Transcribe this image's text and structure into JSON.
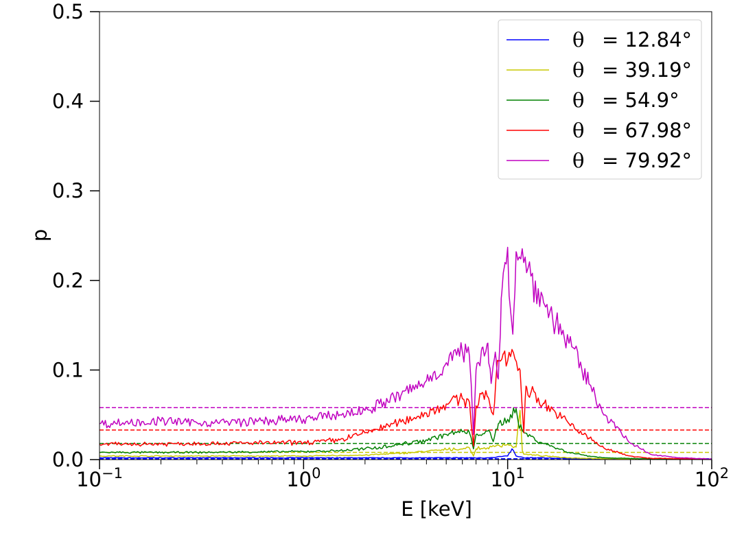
{
  "chart_data": {
    "type": "line",
    "xlabel": "E [keV]",
    "ylabel": "p",
    "xscale": "log",
    "xlim": [
      0.1,
      100
    ],
    "ylim": [
      0.0,
      0.5
    ],
    "x_tick_labels": [
      {
        "base": "10",
        "exp": "−1",
        "value": 0.1
      },
      {
        "base": "10",
        "exp": "0",
        "value": 1
      },
      {
        "base": "10",
        "exp": "1",
        "value": 10
      },
      {
        "base": "10",
        "exp": "2",
        "value": 100
      }
    ],
    "y_tick_labels": [
      {
        "label": "0.0",
        "value": 0.0
      },
      {
        "label": "0.1",
        "value": 0.1
      },
      {
        "label": "0.2",
        "value": 0.2
      },
      {
        "label": "0.3",
        "value": 0.3
      },
      {
        "label": "0.4",
        "value": 0.4
      },
      {
        "label": "0.5",
        "value": 0.5
      }
    ],
    "grid": false,
    "legend_position": "top-right",
    "series": [
      {
        "name": "= 12.84°",
        "symbol": "θ",
        "color": "#0000ff",
        "constant": 0.001,
        "points": [
          [
            0.1,
            0.002
          ],
          [
            0.3,
            0.002
          ],
          [
            1,
            0.002
          ],
          [
            2,
            0.002
          ],
          [
            4,
            0.002
          ],
          [
            6,
            0.002
          ],
          [
            8,
            0.002
          ],
          [
            10,
            0.004
          ],
          [
            10.5,
            0.012
          ],
          [
            11,
            0.004
          ],
          [
            12,
            0.002
          ],
          [
            15,
            0.002
          ],
          [
            20,
            0.001
          ],
          [
            30,
            0.0005
          ],
          [
            50,
            0.0002
          ],
          [
            100,
            0.0001
          ]
        ]
      },
      {
        "name": "= 39.19°",
        "symbol": "θ",
        "color": "#c8c800",
        "constant": 0.008,
        "points": [
          [
            0.1,
            0.004
          ],
          [
            0.3,
            0.004
          ],
          [
            1,
            0.004
          ],
          [
            2,
            0.005
          ],
          [
            3,
            0.007
          ],
          [
            5,
            0.011
          ],
          [
            6.5,
            0.013
          ],
          [
            6.8,
            0.004
          ],
          [
            7,
            0.012
          ],
          [
            8,
            0.013
          ],
          [
            9,
            0.016
          ],
          [
            10,
            0.017
          ],
          [
            11,
            0.014
          ],
          [
            11.5,
            0.055
          ],
          [
            11.8,
            0.01
          ],
          [
            12,
            0.006
          ],
          [
            15,
            0.004
          ],
          [
            20,
            0.002
          ],
          [
            30,
            0.001
          ],
          [
            50,
            0.0005
          ],
          [
            100,
            0.0002
          ]
        ]
      },
      {
        "name": "= 54.9°",
        "symbol": "θ",
        "color": "#008000",
        "constant": 0.018,
        "points": [
          [
            0.1,
            0.008
          ],
          [
            0.3,
            0.008
          ],
          [
            1,
            0.009
          ],
          [
            1.5,
            0.01
          ],
          [
            2,
            0.012
          ],
          [
            3,
            0.017
          ],
          [
            4,
            0.022
          ],
          [
            5,
            0.028
          ],
          [
            6,
            0.031
          ],
          [
            6.5,
            0.03
          ],
          [
            6.8,
            0.012
          ],
          [
            7,
            0.028
          ],
          [
            8,
            0.032
          ],
          [
            8.5,
            0.02
          ],
          [
            9,
            0.04
          ],
          [
            10,
            0.045
          ],
          [
            11,
            0.057
          ],
          [
            11.3,
            0.04
          ],
          [
            12,
            0.03
          ],
          [
            15,
            0.018
          ],
          [
            20,
            0.008
          ],
          [
            25,
            0.004
          ],
          [
            30,
            0.002
          ],
          [
            50,
            0.0008
          ],
          [
            100,
            0.0002
          ]
        ]
      },
      {
        "name": "= 67.98°",
        "symbol": "θ",
        "color": "#ff0000",
        "constant": 0.033,
        "points": [
          [
            0.1,
            0.017
          ],
          [
            0.3,
            0.018
          ],
          [
            1,
            0.019
          ],
          [
            1.5,
            0.022
          ],
          [
            2,
            0.03
          ],
          [
            3,
            0.042
          ],
          [
            4,
            0.052
          ],
          [
            5,
            0.062
          ],
          [
            6,
            0.068
          ],
          [
            6.5,
            0.064
          ],
          [
            6.8,
            0.015
          ],
          [
            7,
            0.06
          ],
          [
            7.5,
            0.075
          ],
          [
            8,
            0.07
          ],
          [
            8.5,
            0.05
          ],
          [
            9,
            0.11
          ],
          [
            9.5,
            0.118
          ],
          [
            10,
            0.11
          ],
          [
            10.5,
            0.123
          ],
          [
            11,
            0.11
          ],
          [
            11.5,
            0.1
          ],
          [
            12,
            0.03
          ],
          [
            12.3,
            0.082
          ],
          [
            13,
            0.075
          ],
          [
            15,
            0.063
          ],
          [
            20,
            0.04
          ],
          [
            25,
            0.024
          ],
          [
            30,
            0.012
          ],
          [
            40,
            0.004
          ],
          [
            50,
            0.0015
          ],
          [
            100,
            0.0003
          ]
        ]
      },
      {
        "name": "= 79.92°",
        "symbol": "θ",
        "color": "#c000c0",
        "constant": 0.058,
        "points": [
          [
            0.1,
            0.04
          ],
          [
            0.2,
            0.043
          ],
          [
            0.3,
            0.041
          ],
          [
            0.5,
            0.042
          ],
          [
            1,
            0.045
          ],
          [
            1.5,
            0.05
          ],
          [
            2,
            0.055
          ],
          [
            3,
            0.072
          ],
          [
            4,
            0.088
          ],
          [
            5,
            0.108
          ],
          [
            6,
            0.12
          ],
          [
            6.5,
            0.115
          ],
          [
            6.8,
            0.028
          ],
          [
            7,
            0.1
          ],
          [
            7.5,
            0.125
          ],
          [
            8,
            0.13
          ],
          [
            8.3,
            0.085
          ],
          [
            8.7,
            0.12
          ],
          [
            9,
            0.09
          ],
          [
            9.3,
            0.18
          ],
          [
            9.7,
            0.22
          ],
          [
            10,
            0.237
          ],
          [
            10.3,
            0.17
          ],
          [
            10.6,
            0.14
          ],
          [
            11,
            0.232
          ],
          [
            11.5,
            0.225
          ],
          [
            12,
            0.22
          ],
          [
            13,
            0.205
          ],
          [
            15,
            0.175
          ],
          [
            20,
            0.13
          ],
          [
            25,
            0.085
          ],
          [
            30,
            0.05
          ],
          [
            40,
            0.018
          ],
          [
            50,
            0.006
          ],
          [
            70,
            0.002
          ],
          [
            100,
            0.0005
          ]
        ]
      }
    ]
  }
}
